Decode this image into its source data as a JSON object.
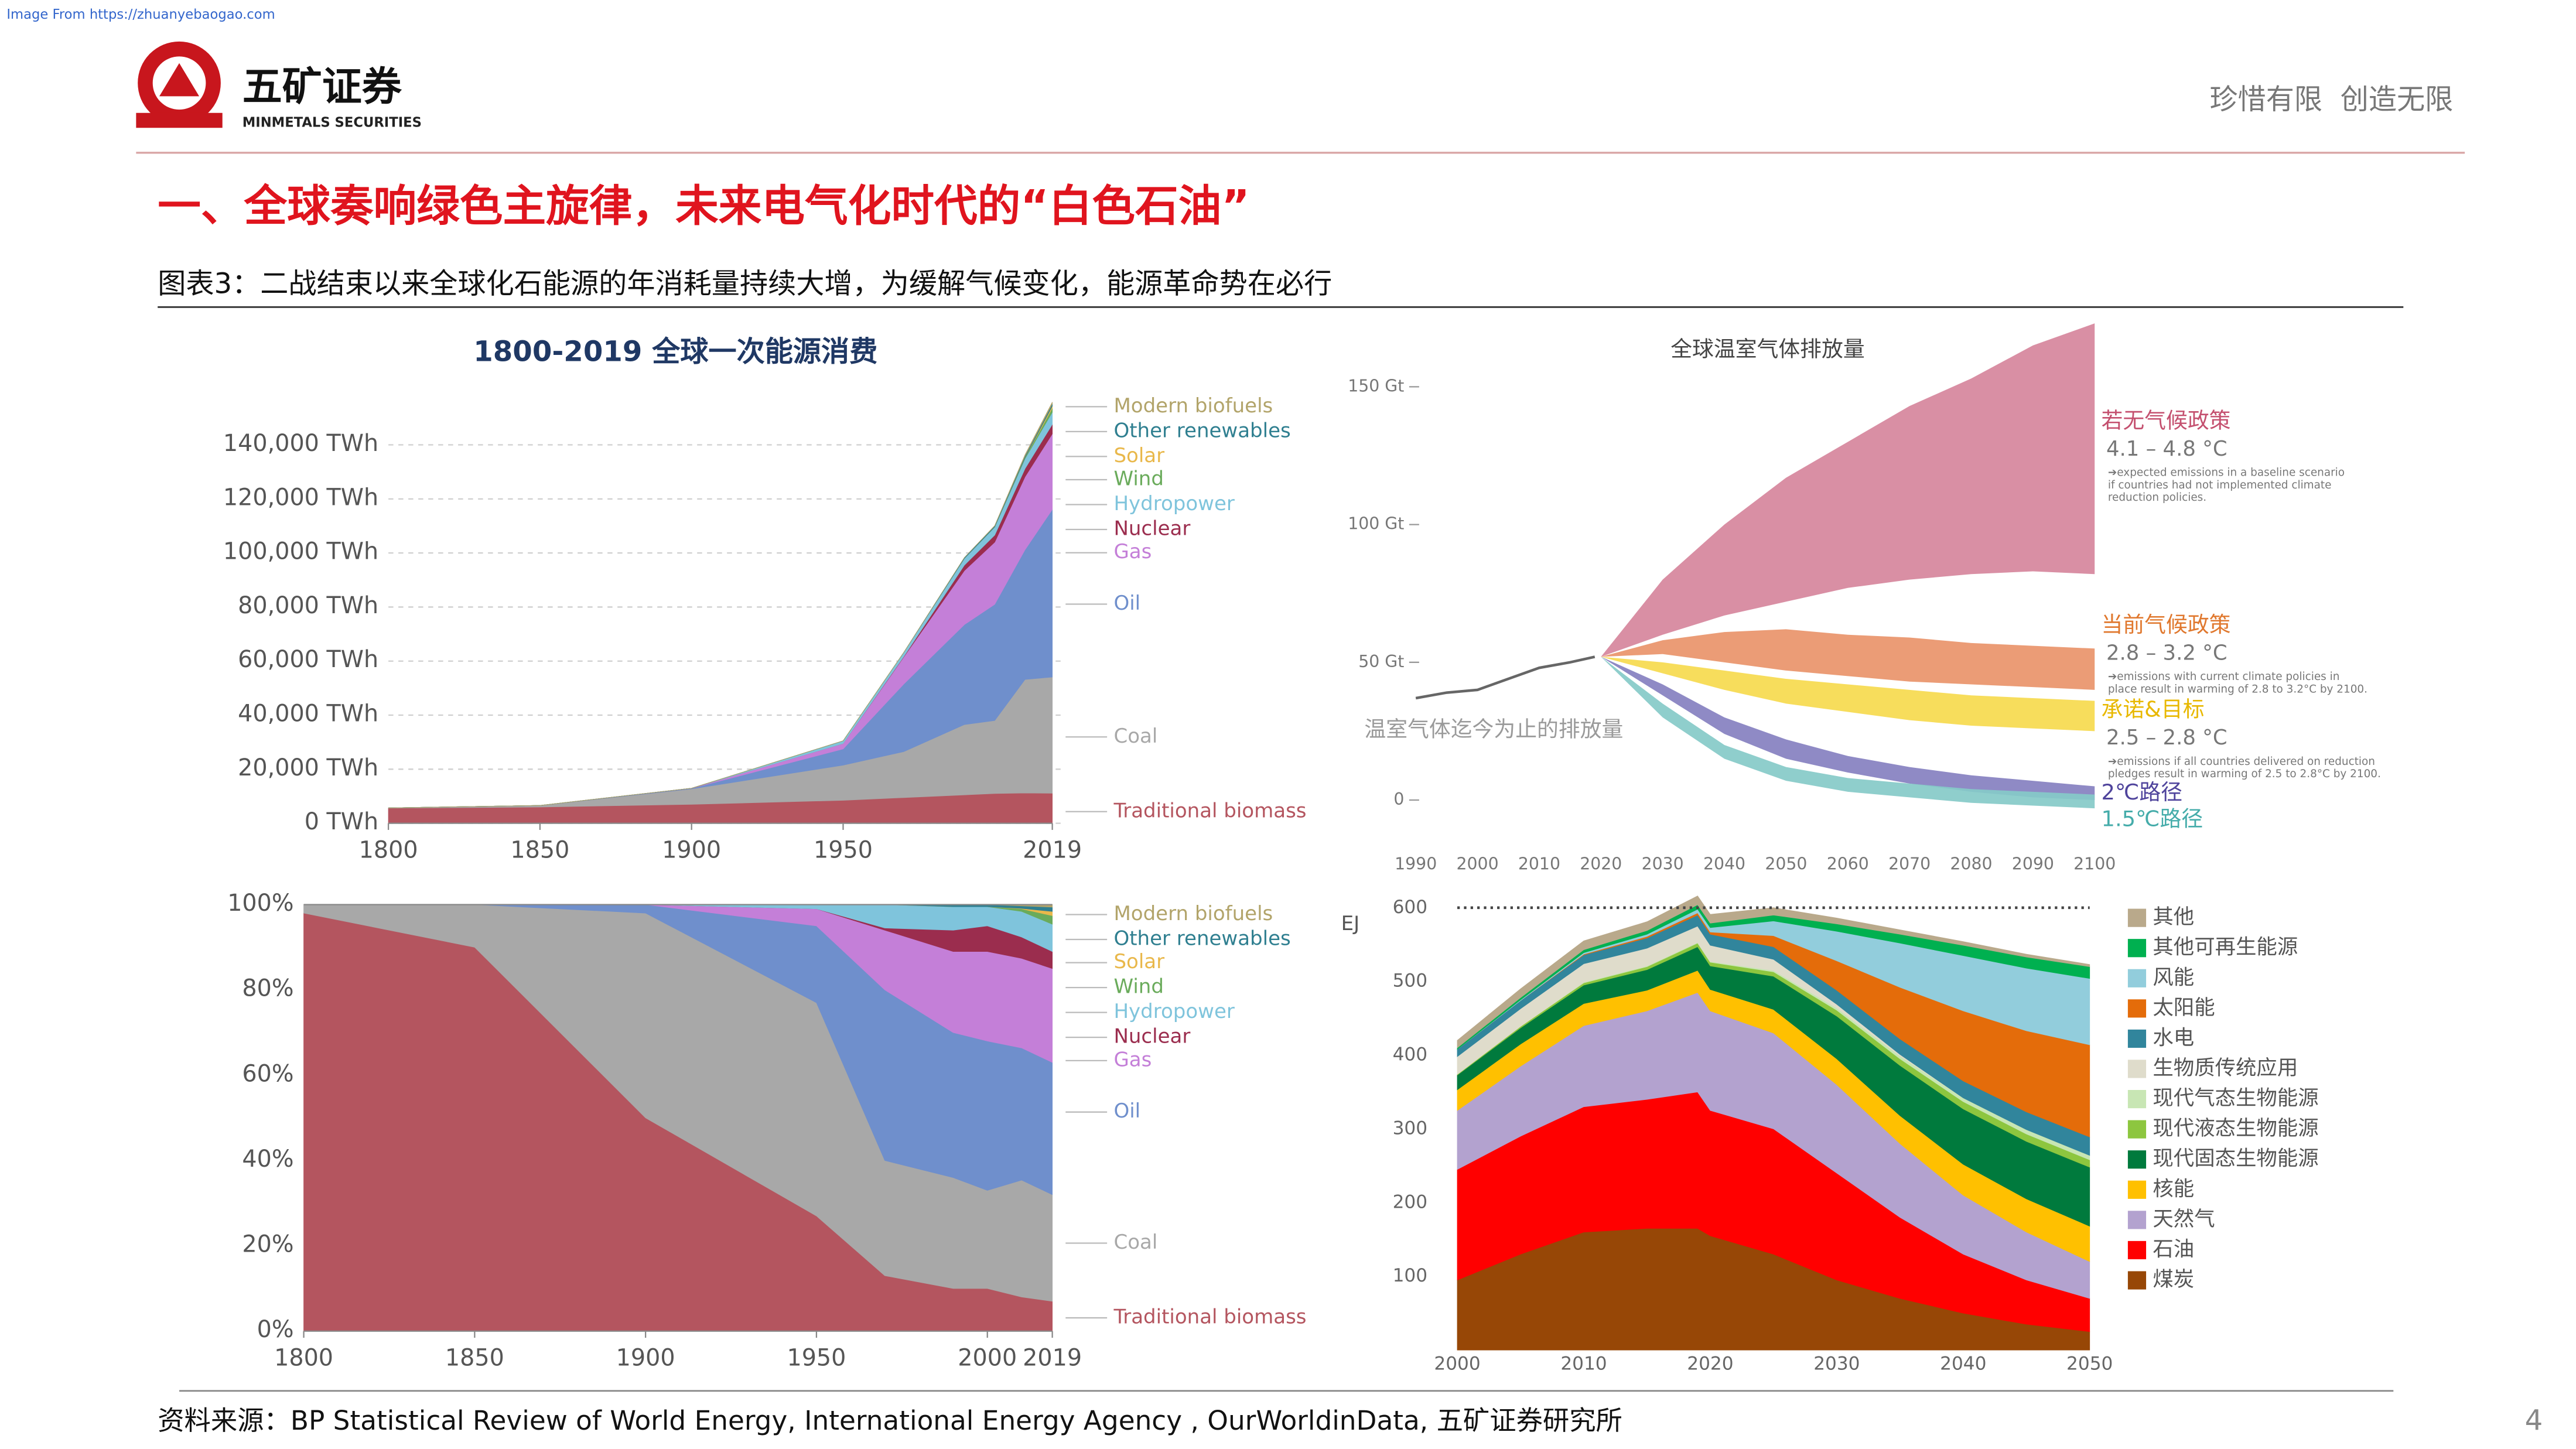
{
  "header": {
    "source_link": "Image From https://zhuanyebaogao.com",
    "company": "五矿证券",
    "company_en": "MINMETALS SECURITIES",
    "slogan": "珍惜有限  创造无限",
    "title": "一、全球奏响绿色主旋律，未来电气化时代的“白色石油”",
    "subtitle": "图表3：二战结束以来全球化石能源的年消耗量持续大增，为缓解气候变化，能源革命势在必行"
  },
  "chart_data": [
    {
      "type": "stacked_area",
      "title": "1800-2019 全球一次能源消费",
      "x": [
        1800,
        1850,
        1900,
        1950,
        1970,
        1990,
        2000,
        2010,
        2019
      ],
      "xlim": [
        1800,
        2019
      ],
      "xticks": [
        1800,
        1850,
        1900,
        1950,
        2019
      ],
      "ylim": [
        0,
        165000
      ],
      "yticks": [
        {
          "value": 0,
          "label": "0 TWh"
        },
        {
          "value": 20000,
          "label": "20,000 TWh"
        },
        {
          "value": 40000,
          "label": "40,000 TWh"
        },
        {
          "value": 60000,
          "label": "60,000 TWh"
        },
        {
          "value": 80000,
          "label": "80,000 TWh"
        },
        {
          "value": 100000,
          "label": "100,000 TWh"
        },
        {
          "value": 120000,
          "label": "120,000 TWh"
        },
        {
          "value": 140000,
          "label": "140,000 TWh"
        }
      ],
      "grid": true,
      "series": [
        {
          "name": "Traditional biomass",
          "color": "#b4555f",
          "values": [
            5600,
            6000,
            7000,
            8500,
            9500,
            10500,
            11000,
            11200,
            11100
          ]
        },
        {
          "name": "Coal",
          "color": "#a8a8a8",
          "values": [
            100,
            600,
            5700,
            13000,
            17000,
            26000,
            27000,
            42000,
            43000
          ]
        },
        {
          "name": "Oil",
          "color": "#6f8fcc",
          "values": [
            0,
            0,
            200,
            6000,
            25000,
            37000,
            43000,
            48000,
            62000
          ]
        },
        {
          "name": "Gas",
          "color": "#c47fd8",
          "values": [
            0,
            0,
            60,
            2000,
            10000,
            20000,
            23000,
            27000,
            28000
          ]
        },
        {
          "name": "Nuclear",
          "color": "#9b2d4e",
          "values": [
            0,
            0,
            0,
            0,
            200,
            2000,
            2600,
            3000,
            3500
          ]
        },
        {
          "name": "Hydropower",
          "color": "#7fc4dc",
          "values": [
            0,
            0,
            0,
            1000,
            1500,
            2500,
            3000,
            3700,
            4500
          ]
        },
        {
          "name": "Wind",
          "color": "#6aab5b",
          "values": [
            0,
            0,
            0,
            0,
            0,
            0,
            30,
            400,
            1500
          ]
        },
        {
          "name": "Solar",
          "color": "#e9b84b",
          "values": [
            0,
            0,
            0,
            0,
            0,
            0,
            0,
            40,
            800
          ]
        },
        {
          "name": "Other renewables",
          "color": "#2f7f90",
          "values": [
            0,
            0,
            0,
            0,
            0,
            300,
            400,
            600,
            800
          ]
        },
        {
          "name": "Modern biofuels",
          "color": "#b2a46a",
          "values": [
            0,
            0,
            0,
            0,
            0,
            0,
            100,
            400,
            600
          ]
        }
      ]
    },
    {
      "type": "stacked_area",
      "x": [
        1800,
        1850,
        1900,
        1950,
        1970,
        1990,
        2000,
        2010,
        2019
      ],
      "xlim": [
        1800,
        2019
      ],
      "xticks": [
        1800,
        1850,
        1900,
        1950,
        2000,
        2019
      ],
      "ylim": [
        0,
        100
      ],
      "yticks": [
        {
          "value": 0,
          "label": "0%"
        },
        {
          "value": 20,
          "label": "20%"
        },
        {
          "value": 40,
          "label": "40%"
        },
        {
          "value": 60,
          "label": "60%"
        },
        {
          "value": 80,
          "label": "80%"
        },
        {
          "value": 100,
          "label": "100%"
        }
      ],
      "grid": false,
      "series": [
        {
          "name": "Traditional biomass",
          "color": "#b4555f",
          "values": [
            98,
            90,
            50,
            27,
            13,
            10,
            10,
            8,
            7
          ]
        },
        {
          "name": "Coal",
          "color": "#a8a8a8",
          "values": [
            2,
            10,
            48,
            50,
            27,
            26,
            23,
            27.4,
            25
          ]
        },
        {
          "name": "Oil",
          "color": "#6f8fcc",
          "values": [
            0,
            0,
            2,
            18,
            40,
            34,
            35,
            31,
            31
          ]
        },
        {
          "name": "Gas",
          "color": "#c47fd8",
          "values": [
            0,
            0,
            0,
            4,
            14,
            19,
            21,
            21,
            22
          ]
        },
        {
          "name": "Nuclear",
          "color": "#9b2d4e",
          "values": [
            0,
            0,
            0,
            0,
            0.5,
            5,
            6,
            5,
            4
          ]
        },
        {
          "name": "Hydropower",
          "color": "#7fc4dc",
          "values": [
            0,
            0,
            0,
            1,
            5.5,
            5.5,
            4.5,
            6,
            6.4
          ]
        },
        {
          "name": "Wind",
          "color": "#6aab5b",
          "values": [
            0,
            0,
            0,
            0,
            0,
            0,
            0,
            0.6,
            2
          ]
        },
        {
          "name": "Solar",
          "color": "#e9b84b",
          "values": [
            0,
            0,
            0,
            0,
            0,
            0,
            0,
            0.1,
            1
          ]
        },
        {
          "name": "Other renewables",
          "color": "#2f7f90",
          "values": [
            0,
            0,
            0,
            0,
            0,
            0.5,
            0.5,
            0.6,
            1
          ]
        },
        {
          "name": "Modern biofuels",
          "color": "#b2a46a",
          "values": [
            0,
            0,
            0,
            0,
            0,
            0,
            0,
            0.3,
            0.6
          ]
        }
      ]
    },
    {
      "type": "band",
      "title": "全球温室气体排放量",
      "xlim": [
        1990,
        2100
      ],
      "xticks": [
        1990,
        2000,
        2010,
        2020,
        2030,
        2040,
        2050,
        2060,
        2070,
        2080,
        2090,
        2100
      ],
      "ylim": [
        -6,
        175
      ],
      "yticks": [
        0,
        {
          "value": 50,
          "label": "50 Gt"
        },
        {
          "value": 100,
          "label": "100 Gt"
        },
        {
          "value": 150,
          "label": "150 Gt"
        }
      ],
      "history": {
        "name": "温室气体迄今为止的排放量",
        "color": "#666666",
        "x": [
          1990,
          1995,
          2000,
          2005,
          2010,
          2015,
          2019
        ],
        "values": [
          37,
          39,
          40,
          44,
          48,
          50,
          52
        ]
      },
      "x": [
        2020,
        2030,
        2040,
        2050,
        2060,
        2070,
        2080,
        2090,
        2100
      ],
      "series": [
        {
          "name": "若无气候政策",
          "range_label": "4.1 – 4.8 °C",
          "note": [
            "➔expected emissions in a baseline scenario",
            "if countries had not implemented climate",
            "reduction policies."
          ],
          "color": "#d6869c",
          "label_color": "#c4506f",
          "high": [
            52,
            80,
            100,
            117,
            130,
            143,
            153,
            165,
            173
          ],
          "low": [
            52,
            60,
            67,
            72,
            77,
            80,
            82,
            83,
            82
          ]
        },
        {
          "name": "当前气候政策",
          "range_label": "2.8 – 3.2 °C",
          "note": [
            "➔emissions with current climate policies in",
            "place result in warming of 2.8 to 3.2°C by 2100."
          ],
          "color": "#e9946a",
          "label_color": "#e0782e",
          "high": [
            52,
            58,
            61,
            62,
            60,
            59,
            57,
            56,
            55
          ],
          "low": [
            52,
            53,
            50,
            47,
            45,
            43,
            42,
            41,
            40
          ]
        },
        {
          "name": "承诺&目标",
          "range_label": "2.5 – 2.8 °C",
          "note": [
            "➔emissions if all countries delivered on reduction",
            "pledges result in warming of 2.5 to 2.8°C by 2100."
          ],
          "color": "#f6da4e",
          "label_color": "#e8b800",
          "high": [
            52,
            50,
            47,
            44,
            42,
            40,
            38,
            37,
            36
          ],
          "low": [
            52,
            46,
            40,
            35,
            32,
            29,
            27,
            26,
            25
          ]
        },
        {
          "name": "2℃路径",
          "color": "#8580c0",
          "label_color": "#4f449c",
          "high": [
            52,
            42,
            30,
            22,
            16,
            12,
            9,
            7,
            5
          ],
          "low": [
            52,
            38,
            24,
            15,
            10,
            6,
            3,
            1,
            0
          ]
        },
        {
          "name": "1.5℃路径",
          "color": "#86cac8",
          "label_color": "#45acaa",
          "high": [
            52,
            35,
            20,
            12,
            8,
            6,
            4,
            3,
            2
          ],
          "low": [
            52,
            30,
            15,
            7,
            3,
            1,
            -1,
            -2,
            -3
          ]
        }
      ]
    },
    {
      "type": "stacked_area",
      "y_label": "EJ",
      "x": [
        2000,
        2005,
        2010,
        2015,
        2019,
        2020,
        2025,
        2030,
        2035,
        2040,
        2045,
        2050
      ],
      "xlim": [
        2000,
        2050
      ],
      "xticks": [
        2000,
        2010,
        2020,
        2030,
        2040,
        2050
      ],
      "ylim": [
        0,
        620
      ],
      "yticks": [
        100,
        200,
        300,
        400,
        500,
        600
      ],
      "reference_line": 600,
      "grid": false,
      "series": [
        {
          "name": "煤炭",
          "color": "#974706",
          "values": [
            95,
            130,
            160,
            165,
            165,
            155,
            130,
            95,
            70,
            50,
            35,
            25
          ]
        },
        {
          "name": "石油",
          "color": "#ff0000",
          "values": [
            150,
            160,
            170,
            175,
            185,
            170,
            170,
            145,
            110,
            80,
            60,
            45
          ]
        },
        {
          "name": "天然气",
          "color": "#b3a2cf",
          "values": [
            80,
            95,
            110,
            120,
            135,
            135,
            130,
            120,
            100,
            80,
            65,
            50
          ]
        },
        {
          "name": "核能",
          "color": "#ffc000",
          "values": [
            28,
            30,
            30,
            28,
            30,
            29,
            32,
            35,
            38,
            42,
            45,
            48
          ]
        },
        {
          "name": "现代固态生物能源",
          "color": "#007a3d",
          "values": [
            20,
            22,
            25,
            28,
            32,
            32,
            45,
            58,
            68,
            75,
            78,
            80
          ]
        },
        {
          "name": "现代液态生物能源",
          "color": "#8dc63f",
          "values": [
            1,
            2,
            3,
            4,
            5,
            5,
            6,
            8,
            9,
            10,
            10,
            10
          ]
        },
        {
          "name": "现代气态生物能源",
          "color": "#c8e6b4",
          "values": [
            0,
            0,
            1,
            1,
            1,
            1,
            2,
            3,
            4,
            5,
            6,
            6
          ]
        },
        {
          "name": "生物质传统应用",
          "color": "#dfdccb",
          "values": [
            24,
            24,
            25,
            24,
            22,
            22,
            15,
            5,
            2,
            0,
            0,
            0
          ]
        },
        {
          "name": "水电",
          "color": "#31859c",
          "values": [
            10,
            11,
            12,
            14,
            15,
            15,
            17,
            19,
            21,
            23,
            24,
            25
          ]
        },
        {
          "name": "太阳能",
          "color": "#e46c0a",
          "values": [
            0,
            0,
            1,
            2,
            3,
            3,
            15,
            40,
            70,
            95,
            110,
            125
          ]
        },
        {
          "name": "风能",
          "color": "#92cddc",
          "values": [
            0,
            1,
            2,
            3,
            5,
            6,
            20,
            40,
            60,
            75,
            85,
            90
          ]
        },
        {
          "name": "其他可再生能源",
          "color": "#00b050",
          "values": [
            2,
            3,
            4,
            5,
            6,
            6,
            8,
            10,
            12,
            14,
            15,
            16
          ]
        },
        {
          "name": "其他",
          "color": "#b9a98b",
          "values": [
            10,
            12,
            12,
            12,
            12,
            12,
            10,
            8,
            6,
            5,
            4,
            3
          ]
        }
      ]
    }
  ],
  "footer": {
    "source": "资料来源：BP Statistical Review of World Energy, International Energy Agency , OurWorldinData, 五矿证券研究所",
    "page_number": "4"
  }
}
